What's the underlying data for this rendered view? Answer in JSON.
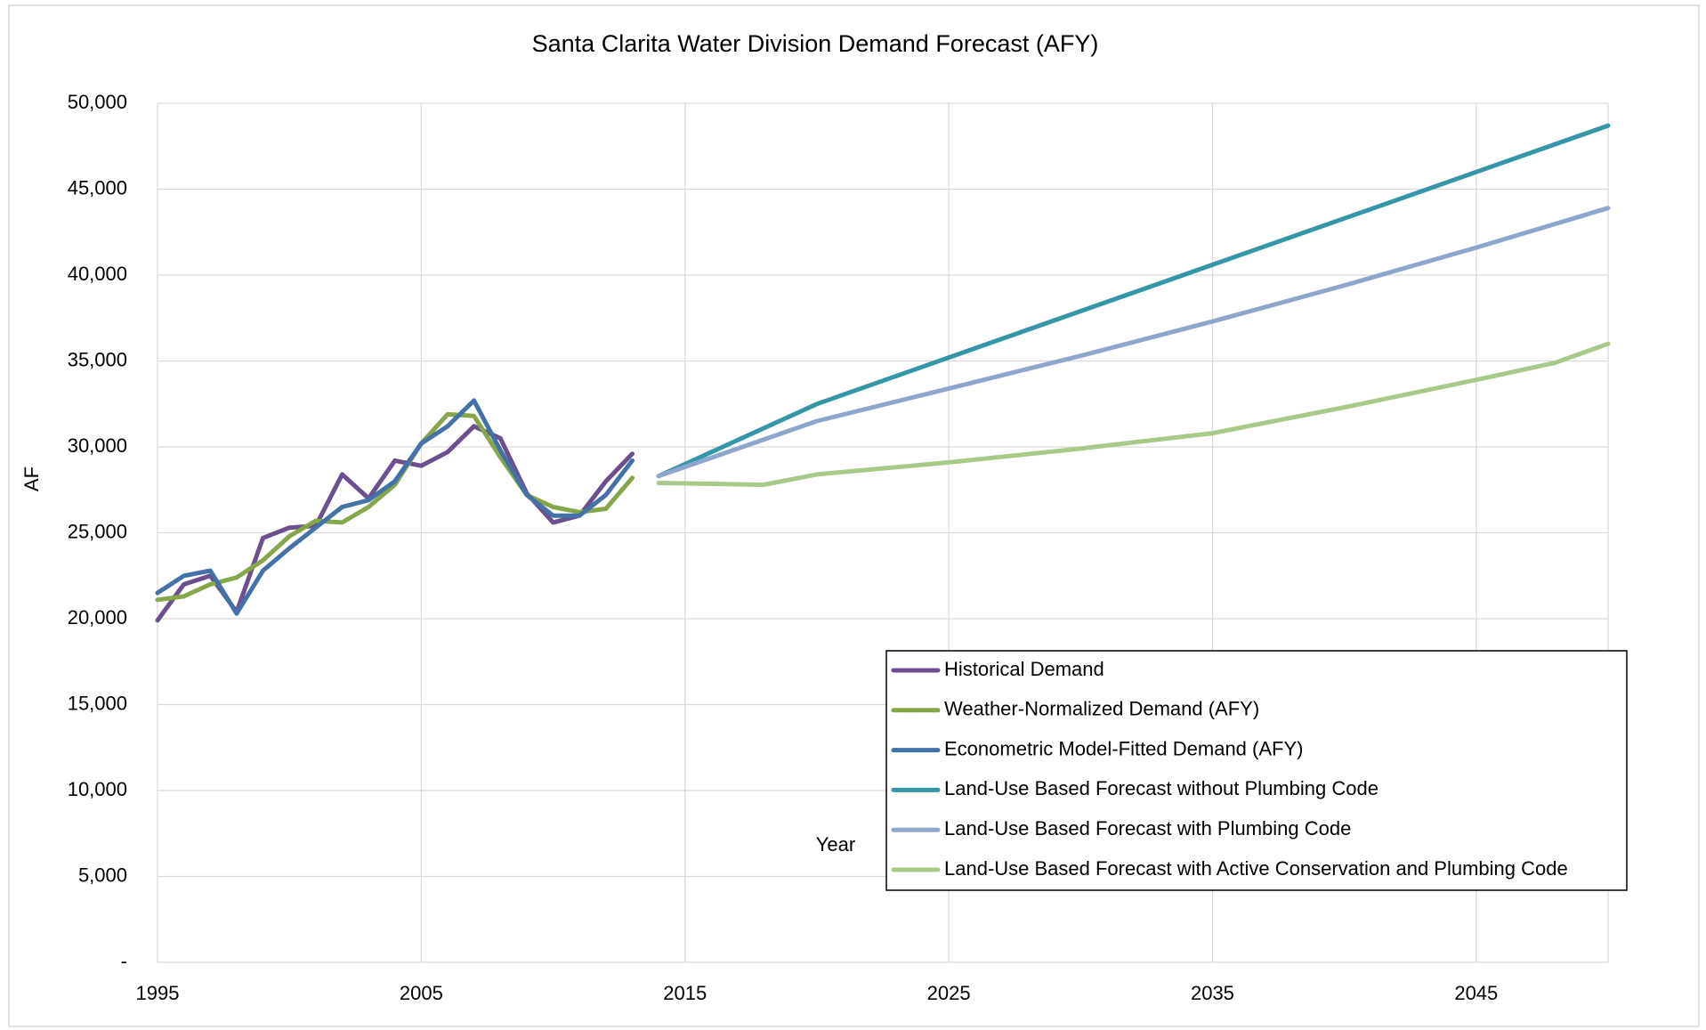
{
  "chart_data": {
    "type": "line",
    "title": "Santa Clarita Water Division Demand Forecast (AFY)",
    "x_label": "Year",
    "y_label": "AF",
    "xlim": [
      1995,
      2050
    ],
    "xticks": [
      1995,
      2005,
      2015,
      2025,
      2035,
      2045
    ],
    "ylim": [
      0,
      50000
    ],
    "yticks": [
      {
        "value": 0,
        "label": "-"
      },
      {
        "value": 5000,
        "label": "5,000"
      },
      {
        "value": 10000,
        "label": "10,000"
      },
      {
        "value": 15000,
        "label": "15,000"
      },
      {
        "value": 20000,
        "label": "20,000"
      },
      {
        "value": 25000,
        "label": "25,000"
      },
      {
        "value": 30000,
        "label": "30,000"
      },
      {
        "value": 35000,
        "label": "35,000"
      },
      {
        "value": 40000,
        "label": "40,000"
      },
      {
        "value": 45000,
        "label": "45,000"
      },
      {
        "value": 50000,
        "label": "50,000"
      }
    ],
    "grid": true,
    "legend": "lower right",
    "series": [
      {
        "name": "Historical Demand",
        "color": "#6b4f8e",
        "x": [
          1995,
          1996,
          1997,
          1998,
          1999,
          2000,
          2001,
          2002,
          2003,
          2004,
          2005,
          2006,
          2007,
          2008,
          2009,
          2010,
          2011,
          2012,
          2013
        ],
        "values": [
          19900,
          22000,
          22500,
          20400,
          24700,
          25300,
          25400,
          28400,
          27000,
          29200,
          28900,
          29700,
          31200,
          30500,
          27300,
          25600,
          26000,
          28000,
          29600
        ]
      },
      {
        "name": "Weather-Normalized Demand (AFY)",
        "color": "#86a64a",
        "x": [
          1995,
          1996,
          1997,
          1998,
          1999,
          2000,
          2001,
          2002,
          2003,
          2004,
          2005,
          2006,
          2007,
          2008,
          2009,
          2010,
          2011,
          2012,
          2013
        ],
        "values": [
          21100,
          21300,
          22000,
          22400,
          23400,
          24800,
          25700,
          25600,
          26500,
          27800,
          30200,
          31900,
          31800,
          29400,
          27200,
          26500,
          26200,
          26400,
          28200
        ]
      },
      {
        "name": "Econometric Model-Fitted Demand (AFY)",
        "color": "#4472a8",
        "x": [
          1995,
          1996,
          1997,
          1998,
          1999,
          2000,
          2001,
          2002,
          2003,
          2004,
          2005,
          2006,
          2007,
          2008,
          2009,
          2010,
          2011,
          2012,
          2013
        ],
        "values": [
          21500,
          22500,
          22800,
          20300,
          22800,
          24100,
          25300,
          26500,
          26900,
          28000,
          30200,
          31200,
          32700,
          29800,
          27200,
          26000,
          26000,
          27200,
          29200
        ]
      },
      {
        "name": "Land-Use Based Forecast without Plumbing Code",
        "color": "#3596a8",
        "x": [
          2014,
          2020,
          2025,
          2030,
          2035,
          2040,
          2045,
          2050
        ],
        "values": [
          28300,
          32500,
          35200,
          37900,
          40600,
          43300,
          46000,
          48700
        ]
      },
      {
        "name": "Land-Use Based Forecast with Plumbing Code",
        "color": "#8fa6cc",
        "x": [
          2014,
          2020,
          2025,
          2030,
          2035,
          2040,
          2045,
          2050
        ],
        "values": [
          28300,
          31500,
          33400,
          35300,
          37300,
          39400,
          41600,
          43900
        ]
      },
      {
        "name": "Land-Use Based Forecast with Active Conservation and Plumbing Code",
        "color": "#a9c98a",
        "x": [
          2014,
          2018,
          2020,
          2025,
          2030,
          2035,
          2040,
          2045,
          2048,
          2050
        ],
        "values": [
          27900,
          27800,
          28400,
          29100,
          29900,
          30800,
          32300,
          33900,
          34900,
          36000
        ]
      }
    ]
  }
}
